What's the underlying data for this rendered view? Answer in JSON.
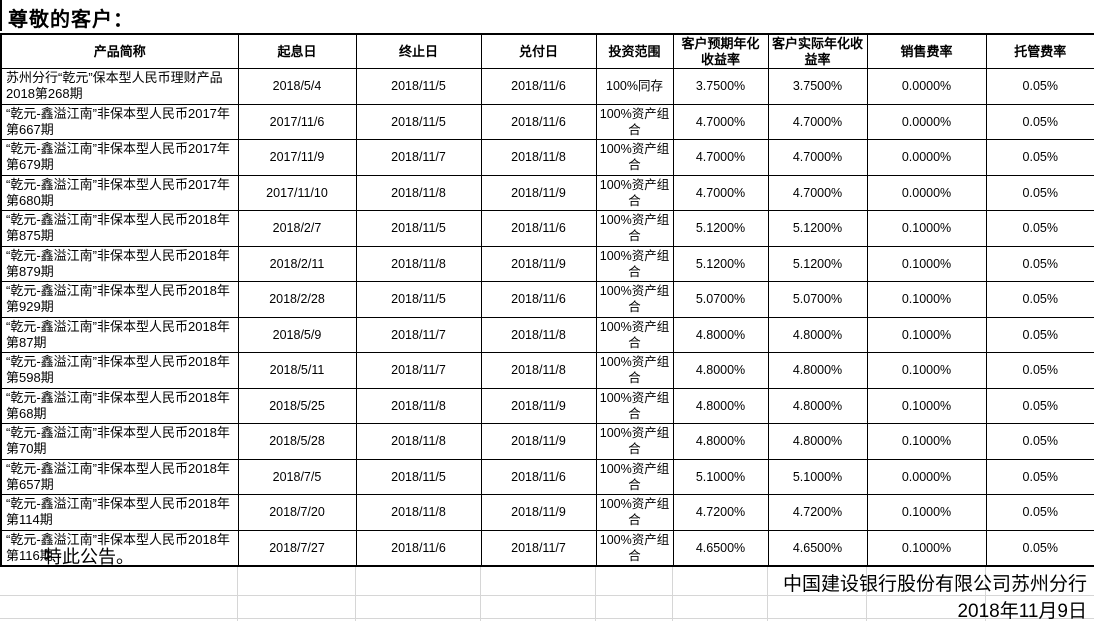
{
  "page": {
    "greeting": "尊敬的客户：",
    "closing": "特此公告。",
    "issuer": "中国建设银行股份有限公司苏州分行",
    "issue_date": "2018年11月9日"
  },
  "table": {
    "headers": [
      "产品简称",
      "起息日",
      "终止日",
      "兑付日",
      "投资范围",
      "客户预期年化收益率",
      "客户实际年化收益率",
      "销售费率",
      "托管费率"
    ],
    "rows": [
      [
        "苏州分行“乾元”保本型人民币理财产品2018第268期",
        "2018/5/4",
        "2018/11/5",
        "2018/11/6",
        "100%同存",
        "3.7500%",
        "3.7500%",
        "0.0000%",
        "0.05%"
      ],
      [
        "“乾元-鑫溢江南”非保本型人民币2017年第667期",
        "2017/11/6",
        "2018/11/5",
        "2018/11/6",
        "100%资产组合",
        "4.7000%",
        "4.7000%",
        "0.0000%",
        "0.05%"
      ],
      [
        "“乾元-鑫溢江南”非保本型人民币2017年第679期",
        "2017/11/9",
        "2018/11/7",
        "2018/11/8",
        "100%资产组合",
        "4.7000%",
        "4.7000%",
        "0.0000%",
        "0.05%"
      ],
      [
        "“乾元-鑫溢江南”非保本型人民币2017年第680期",
        "2017/11/10",
        "2018/11/8",
        "2018/11/9",
        "100%资产组合",
        "4.7000%",
        "4.7000%",
        "0.0000%",
        "0.05%"
      ],
      [
        "“乾元-鑫溢江南”非保本型人民币2018年第875期",
        "2018/2/7",
        "2018/11/5",
        "2018/11/6",
        "100%资产组合",
        "5.1200%",
        "5.1200%",
        "0.1000%",
        "0.05%"
      ],
      [
        "“乾元-鑫溢江南”非保本型人民币2018年第879期",
        "2018/2/11",
        "2018/11/8",
        "2018/11/9",
        "100%资产组合",
        "5.1200%",
        "5.1200%",
        "0.1000%",
        "0.05%"
      ],
      [
        "“乾元-鑫溢江南”非保本型人民币2018年第929期",
        "2018/2/28",
        "2018/11/5",
        "2018/11/6",
        "100%资产组合",
        "5.0700%",
        "5.0700%",
        "0.1000%",
        "0.05%"
      ],
      [
        "“乾元-鑫溢江南”非保本型人民币2018年第87期",
        "2018/5/9",
        "2018/11/7",
        "2018/11/8",
        "100%资产组合",
        "4.8000%",
        "4.8000%",
        "0.1000%",
        "0.05%"
      ],
      [
        "“乾元-鑫溢江南”非保本型人民币2018年第598期",
        "2018/5/11",
        "2018/11/7",
        "2018/11/8",
        "100%资产组合",
        "4.8000%",
        "4.8000%",
        "0.1000%",
        "0.05%"
      ],
      [
        "“乾元-鑫溢江南”非保本型人民币2018年第68期",
        "2018/5/25",
        "2018/11/8",
        "2018/11/9",
        "100%资产组合",
        "4.8000%",
        "4.8000%",
        "0.1000%",
        "0.05%"
      ],
      [
        "“乾元-鑫溢江南”非保本型人民币2018年第70期",
        "2018/5/28",
        "2018/11/8",
        "2018/11/9",
        "100%资产组合",
        "4.8000%",
        "4.8000%",
        "0.1000%",
        "0.05%"
      ],
      [
        "“乾元-鑫溢江南”非保本型人民币2018年第657期",
        "2018/7/5",
        "2018/11/5",
        "2018/11/6",
        "100%资产组合",
        "5.1000%",
        "5.1000%",
        "0.0000%",
        "0.05%"
      ],
      [
        "“乾元-鑫溢江南”非保本型人民币2018年第114期",
        "2018/7/20",
        "2018/11/8",
        "2018/11/9",
        "100%资产组合",
        "4.7200%",
        "4.7200%",
        "0.1000%",
        "0.05%"
      ],
      [
        "“乾元-鑫溢江南”非保本型人民币2018年第116期",
        "2018/7/27",
        "2018/11/6",
        "2018/11/7",
        "100%资产组合",
        "4.6500%",
        "4.6500%",
        "0.1000%",
        "0.05%"
      ]
    ]
  },
  "colors": {
    "text": "#000000",
    "table_border": "#000000",
    "sheet_gridline": "#d6d6d6",
    "background": "#ffffff"
  }
}
